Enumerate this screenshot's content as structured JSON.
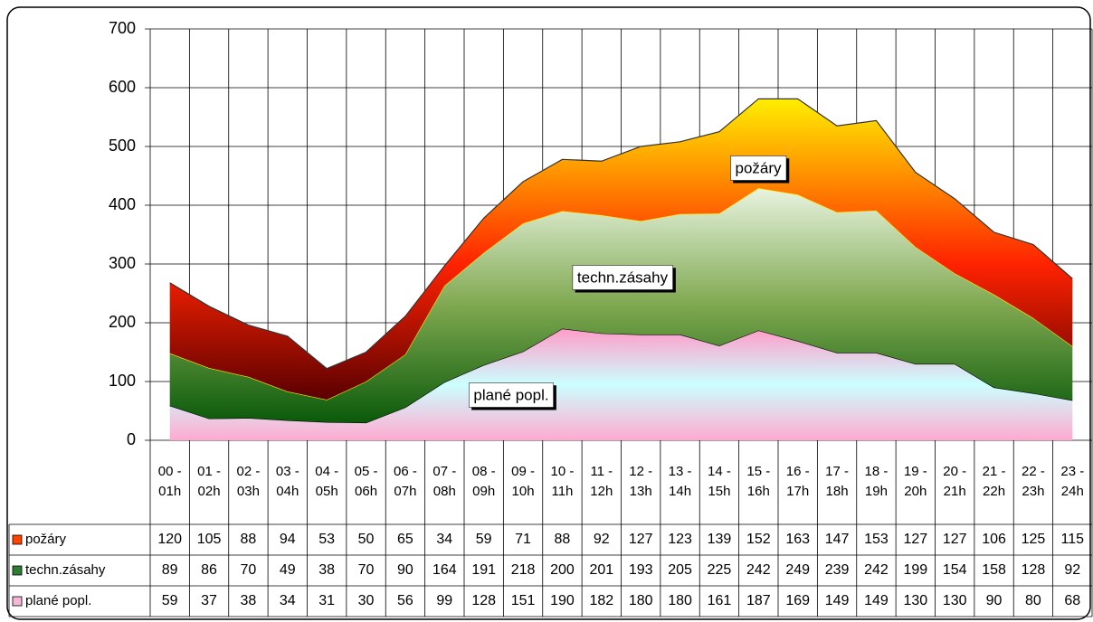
{
  "chart_data": {
    "type": "stacked-area",
    "categories": [
      "00 - 01h",
      "01 - 02h",
      "02 - 03h",
      "03 - 04h",
      "04 - 05h",
      "05 - 06h",
      "06 - 07h",
      "07 - 08h",
      "08 - 09h",
      "09 - 10h",
      "10 - 11h",
      "11 - 12h",
      "12 - 13h",
      "13 - 14h",
      "14 - 15h",
      "15 - 16h",
      "16 - 17h",
      "17 - 18h",
      "18 - 19h",
      "19 - 20h",
      "20 - 21h",
      "21 - 22h",
      "22 - 23h",
      "23 - 24h"
    ],
    "series": [
      {
        "name": "požáry",
        "color": "#ff4400",
        "values": [
          120,
          105,
          88,
          94,
          53,
          50,
          65,
          34,
          59,
          71,
          88,
          92,
          127,
          123,
          139,
          152,
          163,
          147,
          153,
          127,
          127,
          106,
          125,
          115
        ]
      },
      {
        "name": "techn.zásahy",
        "color": "#2e7d32",
        "values": [
          89,
          86,
          70,
          49,
          38,
          70,
          90,
          164,
          191,
          218,
          200,
          201,
          193,
          205,
          225,
          242,
          249,
          239,
          242,
          199,
          154,
          158,
          128,
          92
        ]
      },
      {
        "name": "plané popl.",
        "color": "#f5b8d8",
        "values": [
          59,
          37,
          38,
          34,
          31,
          30,
          56,
          99,
          128,
          151,
          190,
          182,
          180,
          180,
          161,
          187,
          169,
          149,
          149,
          130,
          130,
          90,
          80,
          68
        ]
      }
    ],
    "ylim": [
      0,
      700
    ],
    "yticks": [
      0,
      100,
      200,
      300,
      400,
      500,
      600,
      700
    ],
    "grid": true
  }
}
